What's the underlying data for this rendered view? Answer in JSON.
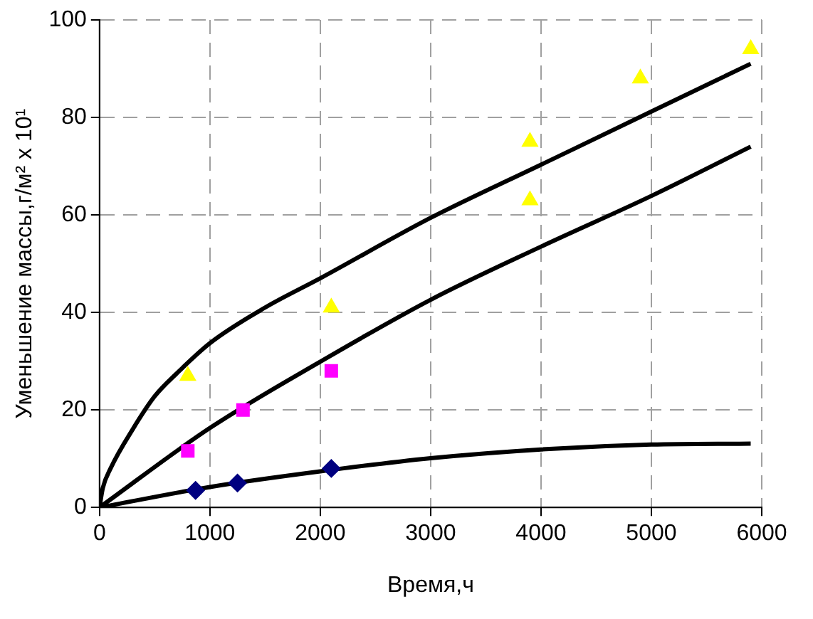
{
  "chart_data": {
    "type": "scatter",
    "xlabel": "Время,ч",
    "ylabel": "Уменьшение массы,г/м² x 10¹",
    "xlim": [
      0,
      6000
    ],
    "xticks": [
      0,
      1000,
      2000,
      3000,
      4000,
      5000,
      6000
    ],
    "ylim": [
      0,
      100
    ],
    "yticks": [
      0,
      20,
      40,
      60,
      80,
      100
    ],
    "grid": true,
    "legend": false,
    "series": [
      {
        "marker": "triangle",
        "color": "#ffff00",
        "x": [
          800,
          2100,
          3900,
          3900,
          4900,
          5900
        ],
        "values": [
          27,
          41,
          63,
          75,
          88,
          94
        ]
      },
      {
        "marker": "square",
        "color": "#ff00ff",
        "x": [
          800,
          1300,
          2100
        ],
        "values": [
          11.6,
          20,
          28
        ]
      },
      {
        "marker": "diamond",
        "color": "#000080",
        "x": [
          870,
          1250,
          2100
        ],
        "values": [
          3.5,
          5,
          8
        ]
      },
      {
        "type": "line",
        "marker": "none",
        "color": "#000000",
        "x": [
          0,
          30,
          100,
          300,
          500,
          700,
          1000,
          1500,
          2000,
          3000,
          4000,
          5000,
          5900
        ],
        "values": [
          0,
          4,
          8,
          16,
          22.8,
          27.5,
          33.7,
          41,
          47,
          59.4,
          70.3,
          81.2,
          91
        ]
      },
      {
        "type": "line",
        "marker": "none",
        "color": "#000000",
        "x": [
          0,
          1000,
          2000,
          3000,
          4000,
          5000,
          5900
        ],
        "values": [
          0,
          16.3,
          29.9,
          42.6,
          53.5,
          63.9,
          74
        ]
      },
      {
        "type": "line",
        "marker": "none",
        "color": "#000000",
        "x": [
          0,
          1000,
          2000,
          3000,
          4000,
          5000,
          5900
        ],
        "values": [
          0,
          4.2,
          7.4,
          10.1,
          11.9,
          12.9,
          13.1
        ]
      }
    ]
  }
}
